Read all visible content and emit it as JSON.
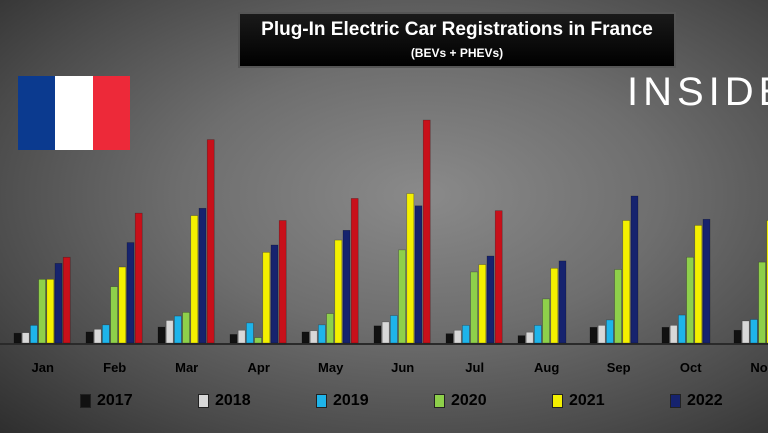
{
  "chart_data": {
    "type": "bar",
    "title": "Plug-In Electric Car Registrations in France",
    "subtitle": "(BEVs + PHEVs)",
    "categories": [
      "Jan",
      "Feb",
      "Mar",
      "Apr",
      "May",
      "Jun",
      "Jul",
      "Aug",
      "Sep",
      "Oct",
      "Nov"
    ],
    "ylim": [
      0,
      100
    ],
    "xlabel": "",
    "ylabel": "",
    "series": [
      {
        "name": "2017",
        "color": "#111111",
        "values": [
          4,
          4.5,
          6.5,
          3.5,
          4.5,
          7,
          3.8,
          3,
          6.4,
          6.4,
          5.2
        ]
      },
      {
        "name": "2018",
        "color": "#d8d8d8",
        "values": [
          4.2,
          5.6,
          9.2,
          5.2,
          5,
          8.6,
          5.2,
          4.4,
          7.2,
          7.2,
          9
        ]
      },
      {
        "name": "2019",
        "color": "#1eb4ea",
        "values": [
          7.2,
          7.4,
          11,
          8.2,
          7.4,
          11.2,
          7.2,
          7.2,
          9.4,
          11.4,
          9.6
        ]
      },
      {
        "name": "2020",
        "color": "#8ed04a",
        "values": [
          26,
          23,
          12.5,
          2.2,
          12,
          38,
          29,
          18,
          30,
          35,
          33
        ]
      },
      {
        "name": "2021",
        "color": "#f4f000",
        "values": [
          26,
          31,
          52,
          37,
          42,
          61,
          32,
          30.5,
          50,
          48,
          50
        ]
      },
      {
        "name": "2022",
        "color": "#16236e",
        "values": [
          32.5,
          41,
          55,
          40,
          46,
          56,
          35.5,
          33.5,
          60,
          50.5,
          null
        ]
      },
      {
        "name": "",
        "color": "#c8101a",
        "values": [
          35,
          53,
          83,
          50,
          59,
          91,
          54,
          null,
          null,
          null,
          null
        ]
      }
    ]
  },
  "legend": [
    "2017",
    "2018",
    "2019",
    "2020",
    "2021",
    "2022"
  ],
  "flag_colors": [
    "#0b3a8f",
    "#ffffff",
    "#ed2939"
  ],
  "logo": "INSIDE"
}
